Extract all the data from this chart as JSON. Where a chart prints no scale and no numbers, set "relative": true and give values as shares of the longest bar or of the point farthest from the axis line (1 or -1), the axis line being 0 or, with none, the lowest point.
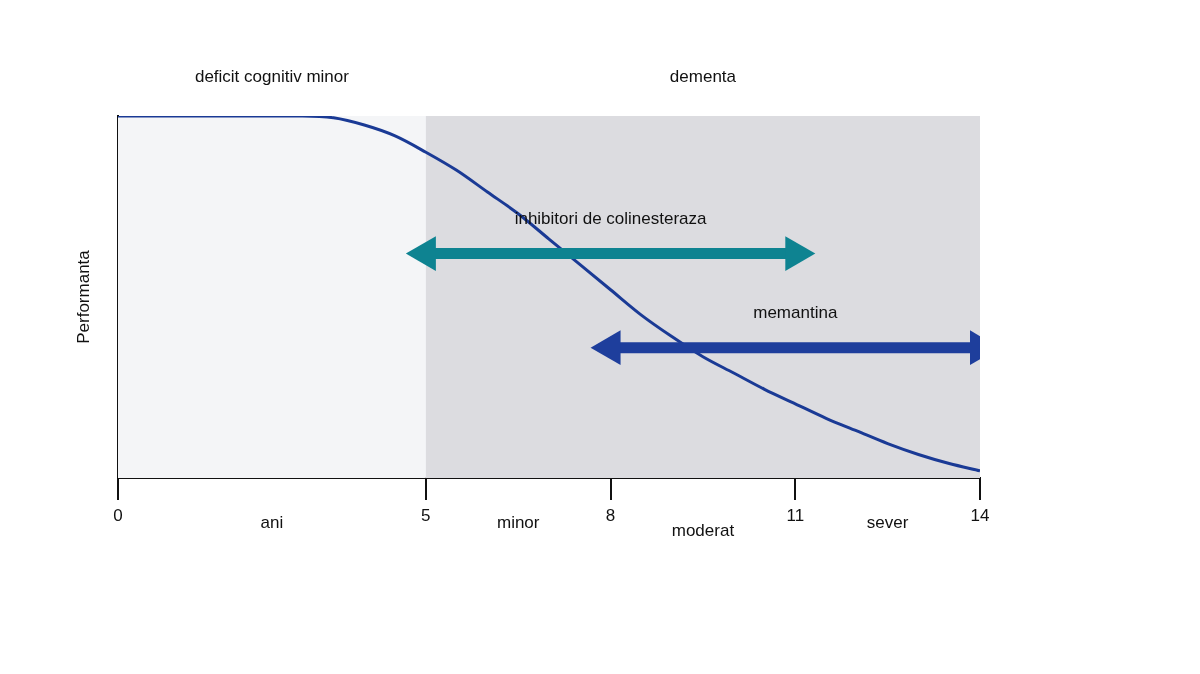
{
  "chart_data": {
    "type": "line",
    "relative": true,
    "ylabel": "Performanta",
    "xlim": [
      0,
      14
    ],
    "xticks": [
      0,
      5,
      8,
      11,
      14
    ],
    "grid": false,
    "legend": false,
    "series": [
      {
        "color": "#1a3a95",
        "marker": "none",
        "x": [
          0,
          3,
          3.5,
          4,
          4.5,
          5,
          5.5,
          6,
          6.5,
          7,
          7.5,
          8,
          8.5,
          9,
          9.5,
          10,
          10.5,
          11,
          11.5,
          12,
          12.5,
          13,
          13.5,
          14
        ],
        "values": [
          1,
          1,
          0.995,
          0.975,
          0.945,
          0.9,
          0.85,
          0.79,
          0.73,
          0.66,
          0.59,
          0.52,
          0.45,
          0.39,
          0.335,
          0.29,
          0.245,
          0.205,
          0.165,
          0.13,
          0.095,
          0.065,
          0.04,
          0.02
        ]
      },
      {
        "name": "inhibitori de colinesteraza",
        "color": "#0e8391",
        "marker": "triangle",
        "x": [
          5,
          11
        ],
        "values": [
          0.62,
          0.62
        ]
      },
      {
        "name": "memantina",
        "color": "#1e3e9c",
        "marker": "triangle",
        "x": [
          8,
          14
        ],
        "values": [
          0.36,
          0.36
        ]
      }
    ],
    "bands": [
      {
        "axis": "x",
        "from": 0,
        "to": 5,
        "label": "deficit cognitiv minor",
        "color": "#f4f5f7"
      },
      {
        "axis": "x",
        "from": 5,
        "to": 14,
        "label": "dementa",
        "color": "#dcdce0"
      }
    ],
    "annotations": [
      "ani",
      "minor",
      "moderat",
      "sever"
    ]
  }
}
